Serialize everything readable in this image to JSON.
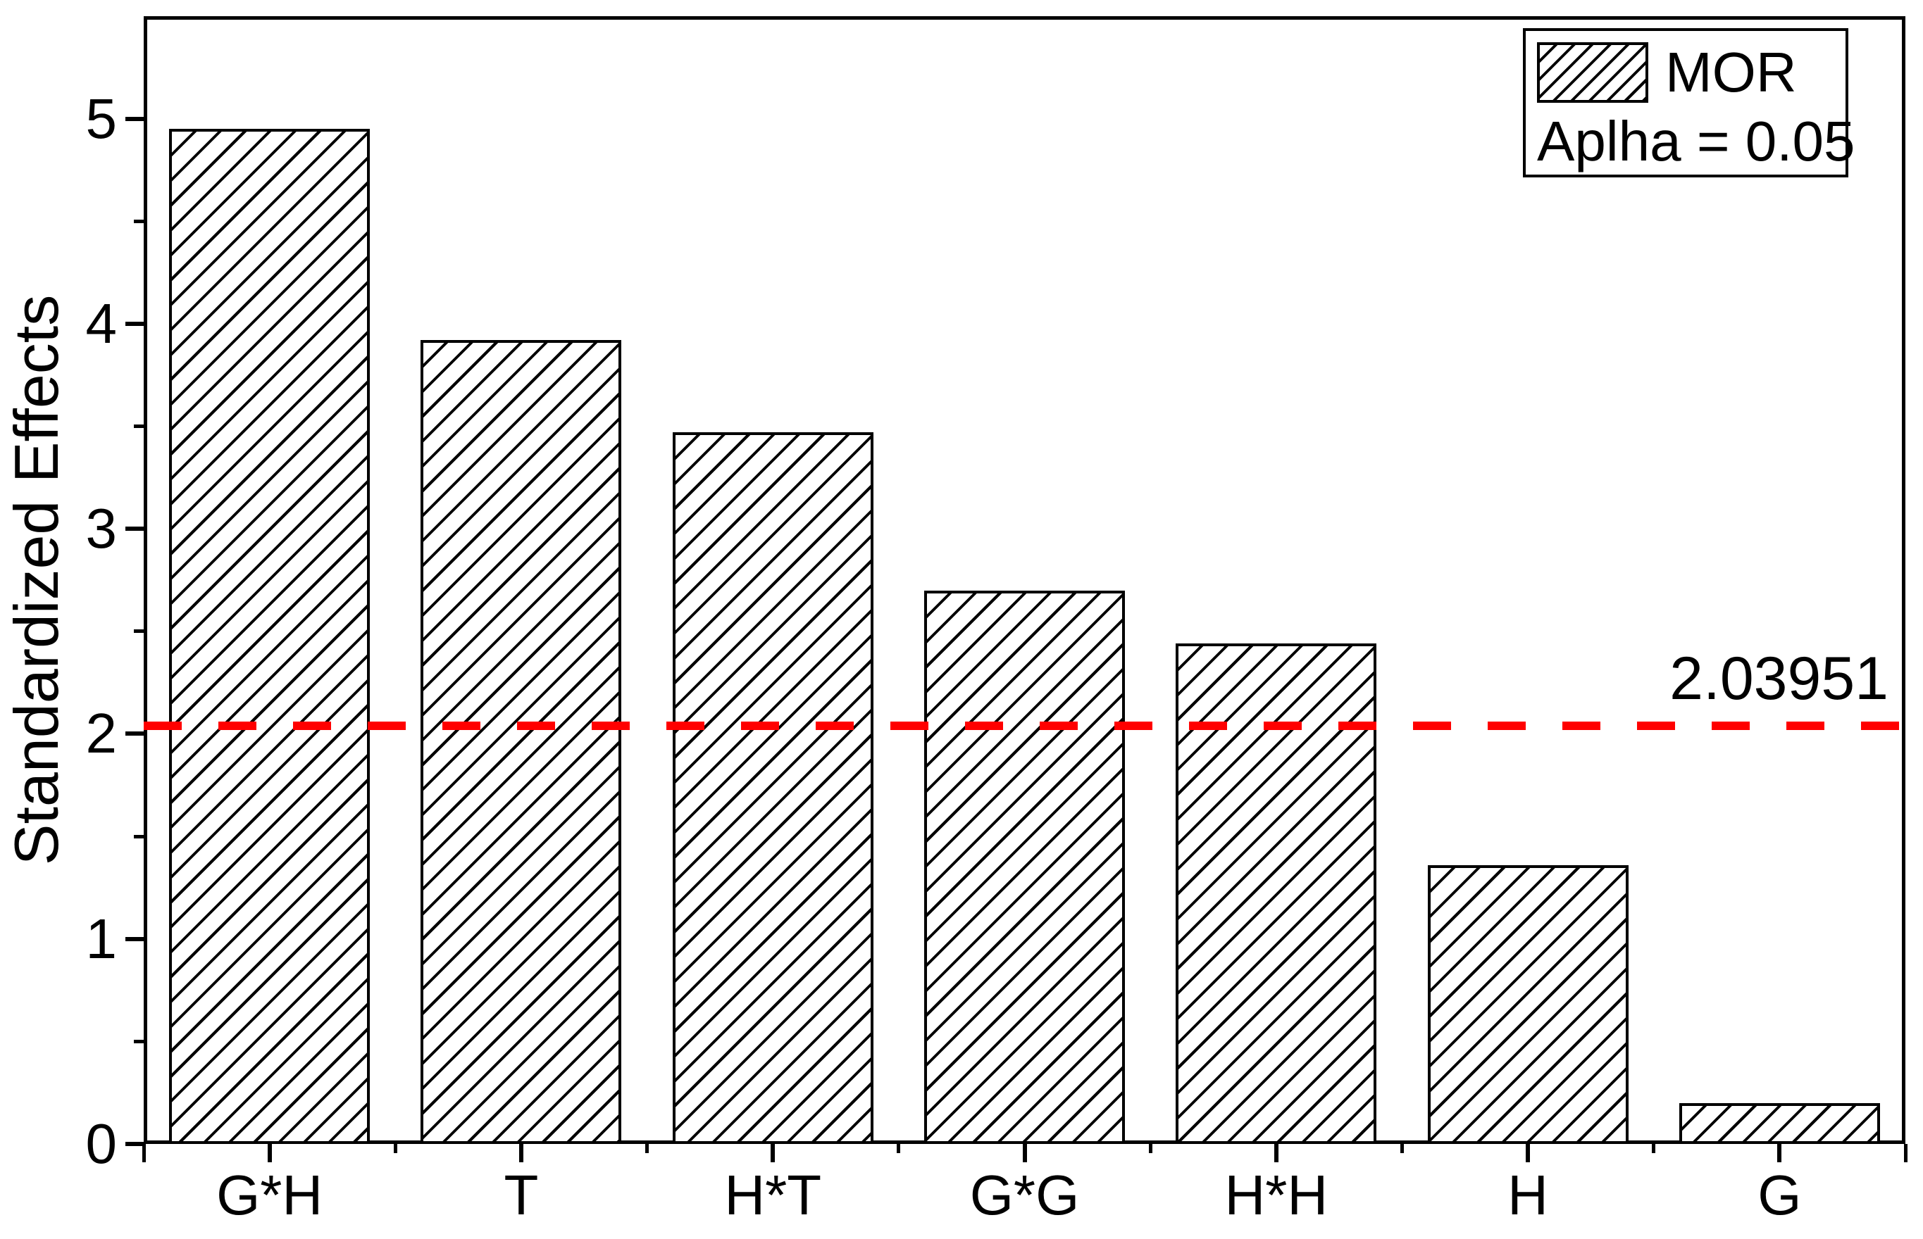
{
  "chart_data": {
    "type": "bar",
    "title": "",
    "categories": [
      "G*H",
      "T",
      "H*T",
      "G*G",
      "H*H",
      "H",
      "G"
    ],
    "values": [
      4.95,
      3.92,
      3.47,
      2.7,
      2.44,
      1.36,
      0.2
    ],
    "series": [
      {
        "name": "MOR",
        "values": [
          4.95,
          3.92,
          3.47,
          2.7,
          2.44,
          1.36,
          0.2
        ]
      }
    ],
    "xlabel": "",
    "ylabel": "Standardized Effects",
    "ylim": [
      0,
      5.5
    ],
    "y_major_ticks": [
      0,
      1,
      2,
      3,
      4,
      5
    ],
    "y_major_tick_labels": [
      "0",
      "1",
      "2",
      "3",
      "4",
      "5"
    ],
    "y_minor_ticks": [
      0.5,
      1.5,
      2.5,
      3.5,
      4.5
    ],
    "grid": "off",
    "bar_style": {
      "fill": "#ffffff",
      "hatch": "forward-diagonal",
      "border_color": "#000000"
    },
    "reference_line": {
      "value": 2.03951,
      "label": "2.03951",
      "color": "#ff0000",
      "style": "dashed"
    },
    "legend": {
      "position": "top-right",
      "series_label": "MOR",
      "alpha_label": "Aplha = 0.05"
    }
  }
}
